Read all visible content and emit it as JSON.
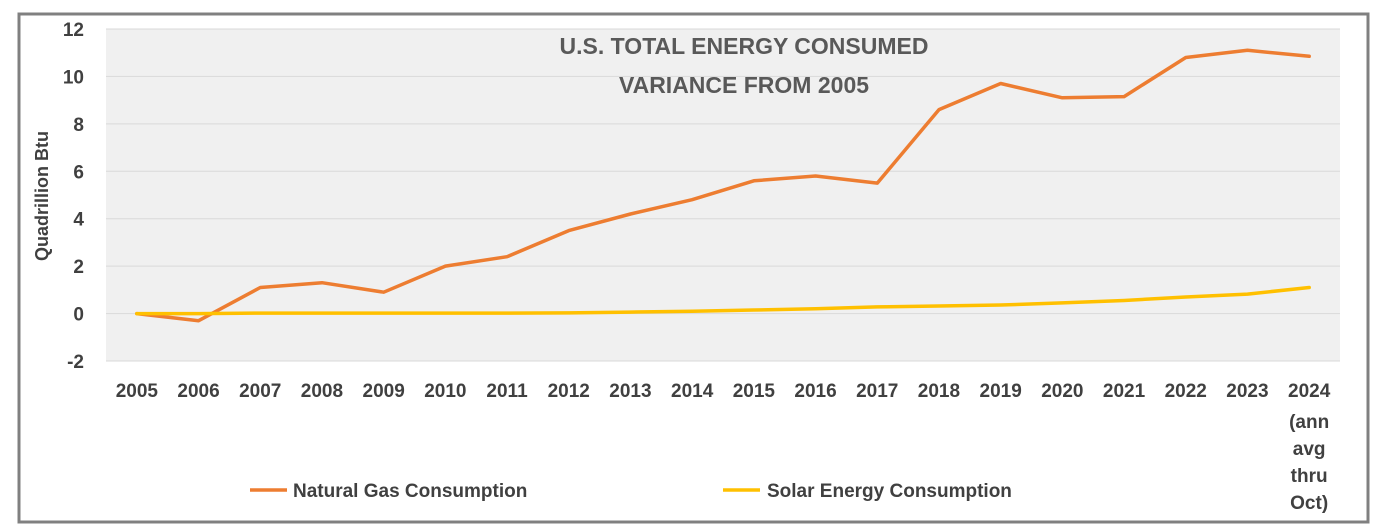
{
  "chart_data": {
    "type": "line",
    "title_lines": [
      "U.S. TOTAL ENERGY CONSUMED",
      "VARIANCE FROM 2005"
    ],
    "ylabel": "Quadrillion Btu",
    "xlabel": "",
    "ylim": [
      -2,
      12
    ],
    "yticks": [
      -2,
      0,
      2,
      4,
      6,
      8,
      10,
      12
    ],
    "grid": true,
    "legend_position": "bottom",
    "categories": [
      "2005",
      "2006",
      "2007",
      "2008",
      "2009",
      "2010",
      "2011",
      "2012",
      "2013",
      "2014",
      "2015",
      "2016",
      "2017",
      "2018",
      "2019",
      "2020",
      "2021",
      "2022",
      "2023",
      "2024"
    ],
    "last_category_extra_lines": [
      "(ann",
      "avg",
      "thru",
      "Oct)"
    ],
    "series": [
      {
        "name": "Natural Gas Consumption",
        "color": "#ED7D31",
        "values": [
          0,
          -0.3,
          1.1,
          1.3,
          0.9,
          2.0,
          2.4,
          3.5,
          4.2,
          4.8,
          5.6,
          5.8,
          5.5,
          8.6,
          9.7,
          9.1,
          9.15,
          10.8,
          11.1,
          10.85
        ]
      },
      {
        "name": "Solar Energy Consumption",
        "color": "#FFC000",
        "values": [
          0,
          0,
          0.02,
          0.02,
          0.02,
          0.02,
          0.02,
          0.03,
          0.06,
          0.1,
          0.15,
          0.2,
          0.28,
          0.32,
          0.36,
          0.45,
          0.55,
          0.7,
          0.82,
          1.1
        ]
      }
    ]
  }
}
